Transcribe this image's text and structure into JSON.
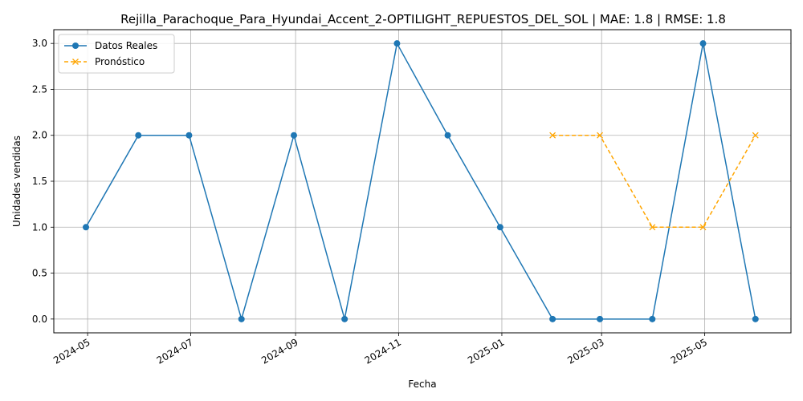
{
  "chart_data": {
    "type": "line",
    "title": "Rejilla_Parachoque_Para_Hyundai_Accent_2-OPTILIGHT_REPUESTOS_DEL_SOL | MAE: 1.8 | RMSE: 1.8",
    "xlabel": "Fecha",
    "ylabel": "Unidades vendidas",
    "xlim": [
      "2024-04-11",
      "2025-06-21"
    ],
    "ylim": [
      -0.15,
      3.15
    ],
    "x_ticks": [
      "2024-05",
      "2024-07",
      "2024-09",
      "2024-11",
      "2025-01",
      "2025-03",
      "2025-05"
    ],
    "y_ticks": [
      "0.0",
      "0.5",
      "1.0",
      "1.5",
      "2.0",
      "2.5",
      "3.0"
    ],
    "grid": true,
    "legend_position": "top-left",
    "series": [
      {
        "name": "Datos Reales",
        "color": "#1f77b4",
        "linestyle": "solid",
        "marker": "circle",
        "x": [
          "2024-04-30",
          "2024-05-31",
          "2024-06-30",
          "2024-07-31",
          "2024-08-31",
          "2024-09-30",
          "2024-10-31",
          "2024-11-30",
          "2024-12-31",
          "2025-01-31",
          "2025-02-28",
          "2025-03-31",
          "2025-04-30",
          "2025-05-31"
        ],
        "values": [
          1,
          2,
          2,
          0,
          2,
          0,
          3,
          2,
          1,
          0,
          0,
          0,
          3,
          0
        ]
      },
      {
        "name": "Pronóstico",
        "color": "#ffa500",
        "linestyle": "dashed",
        "marker": "x",
        "x": [
          "2025-01-31",
          "2025-02-28",
          "2025-03-31",
          "2025-04-30",
          "2025-05-31"
        ],
        "values": [
          2,
          2,
          1,
          1,
          2
        ]
      }
    ]
  }
}
